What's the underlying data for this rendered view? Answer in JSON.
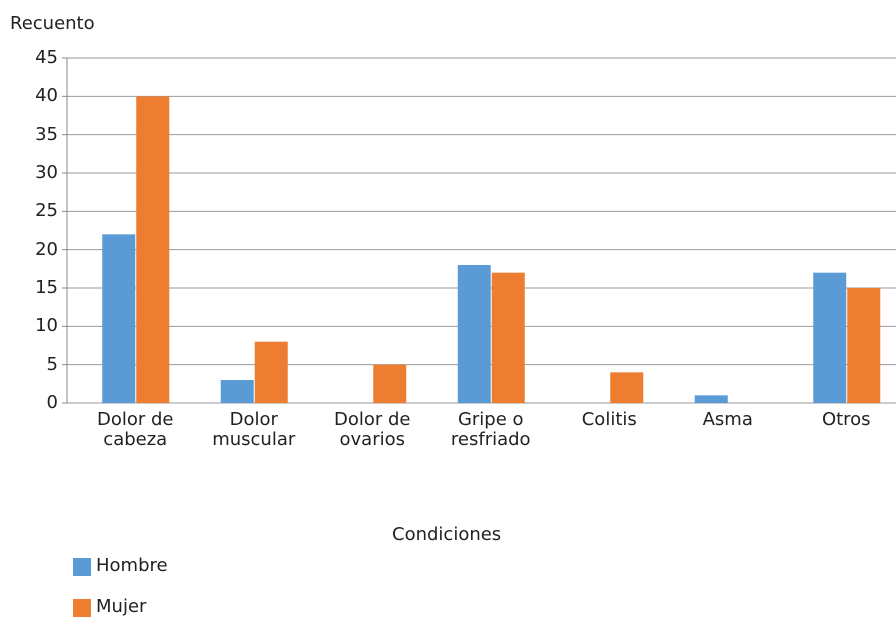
{
  "chart_data": {
    "type": "bar",
    "y_label": "Recuento",
    "x_label": "Condiciones",
    "categories": [
      "Dolor de cabeza",
      "Dolor muscular",
      "Dolor de ovarios",
      "Gripe o resfriado",
      "Colitis",
      "Asma",
      "Otros"
    ],
    "series": [
      {
        "name": "Hombre",
        "color": "#5b9bd5",
        "values": [
          22,
          3,
          0,
          18,
          0,
          1,
          17
        ]
      },
      {
        "name": "Mujer",
        "color": "#ed7d31",
        "values": [
          40,
          8,
          5,
          17,
          4,
          0,
          15
        ]
      }
    ],
    "ylim": [
      0,
      45
    ],
    "yticks": [
      0,
      5,
      10,
      15,
      20,
      25,
      30,
      35,
      40,
      45
    ],
    "grid": true,
    "legend": "bottom-left"
  }
}
